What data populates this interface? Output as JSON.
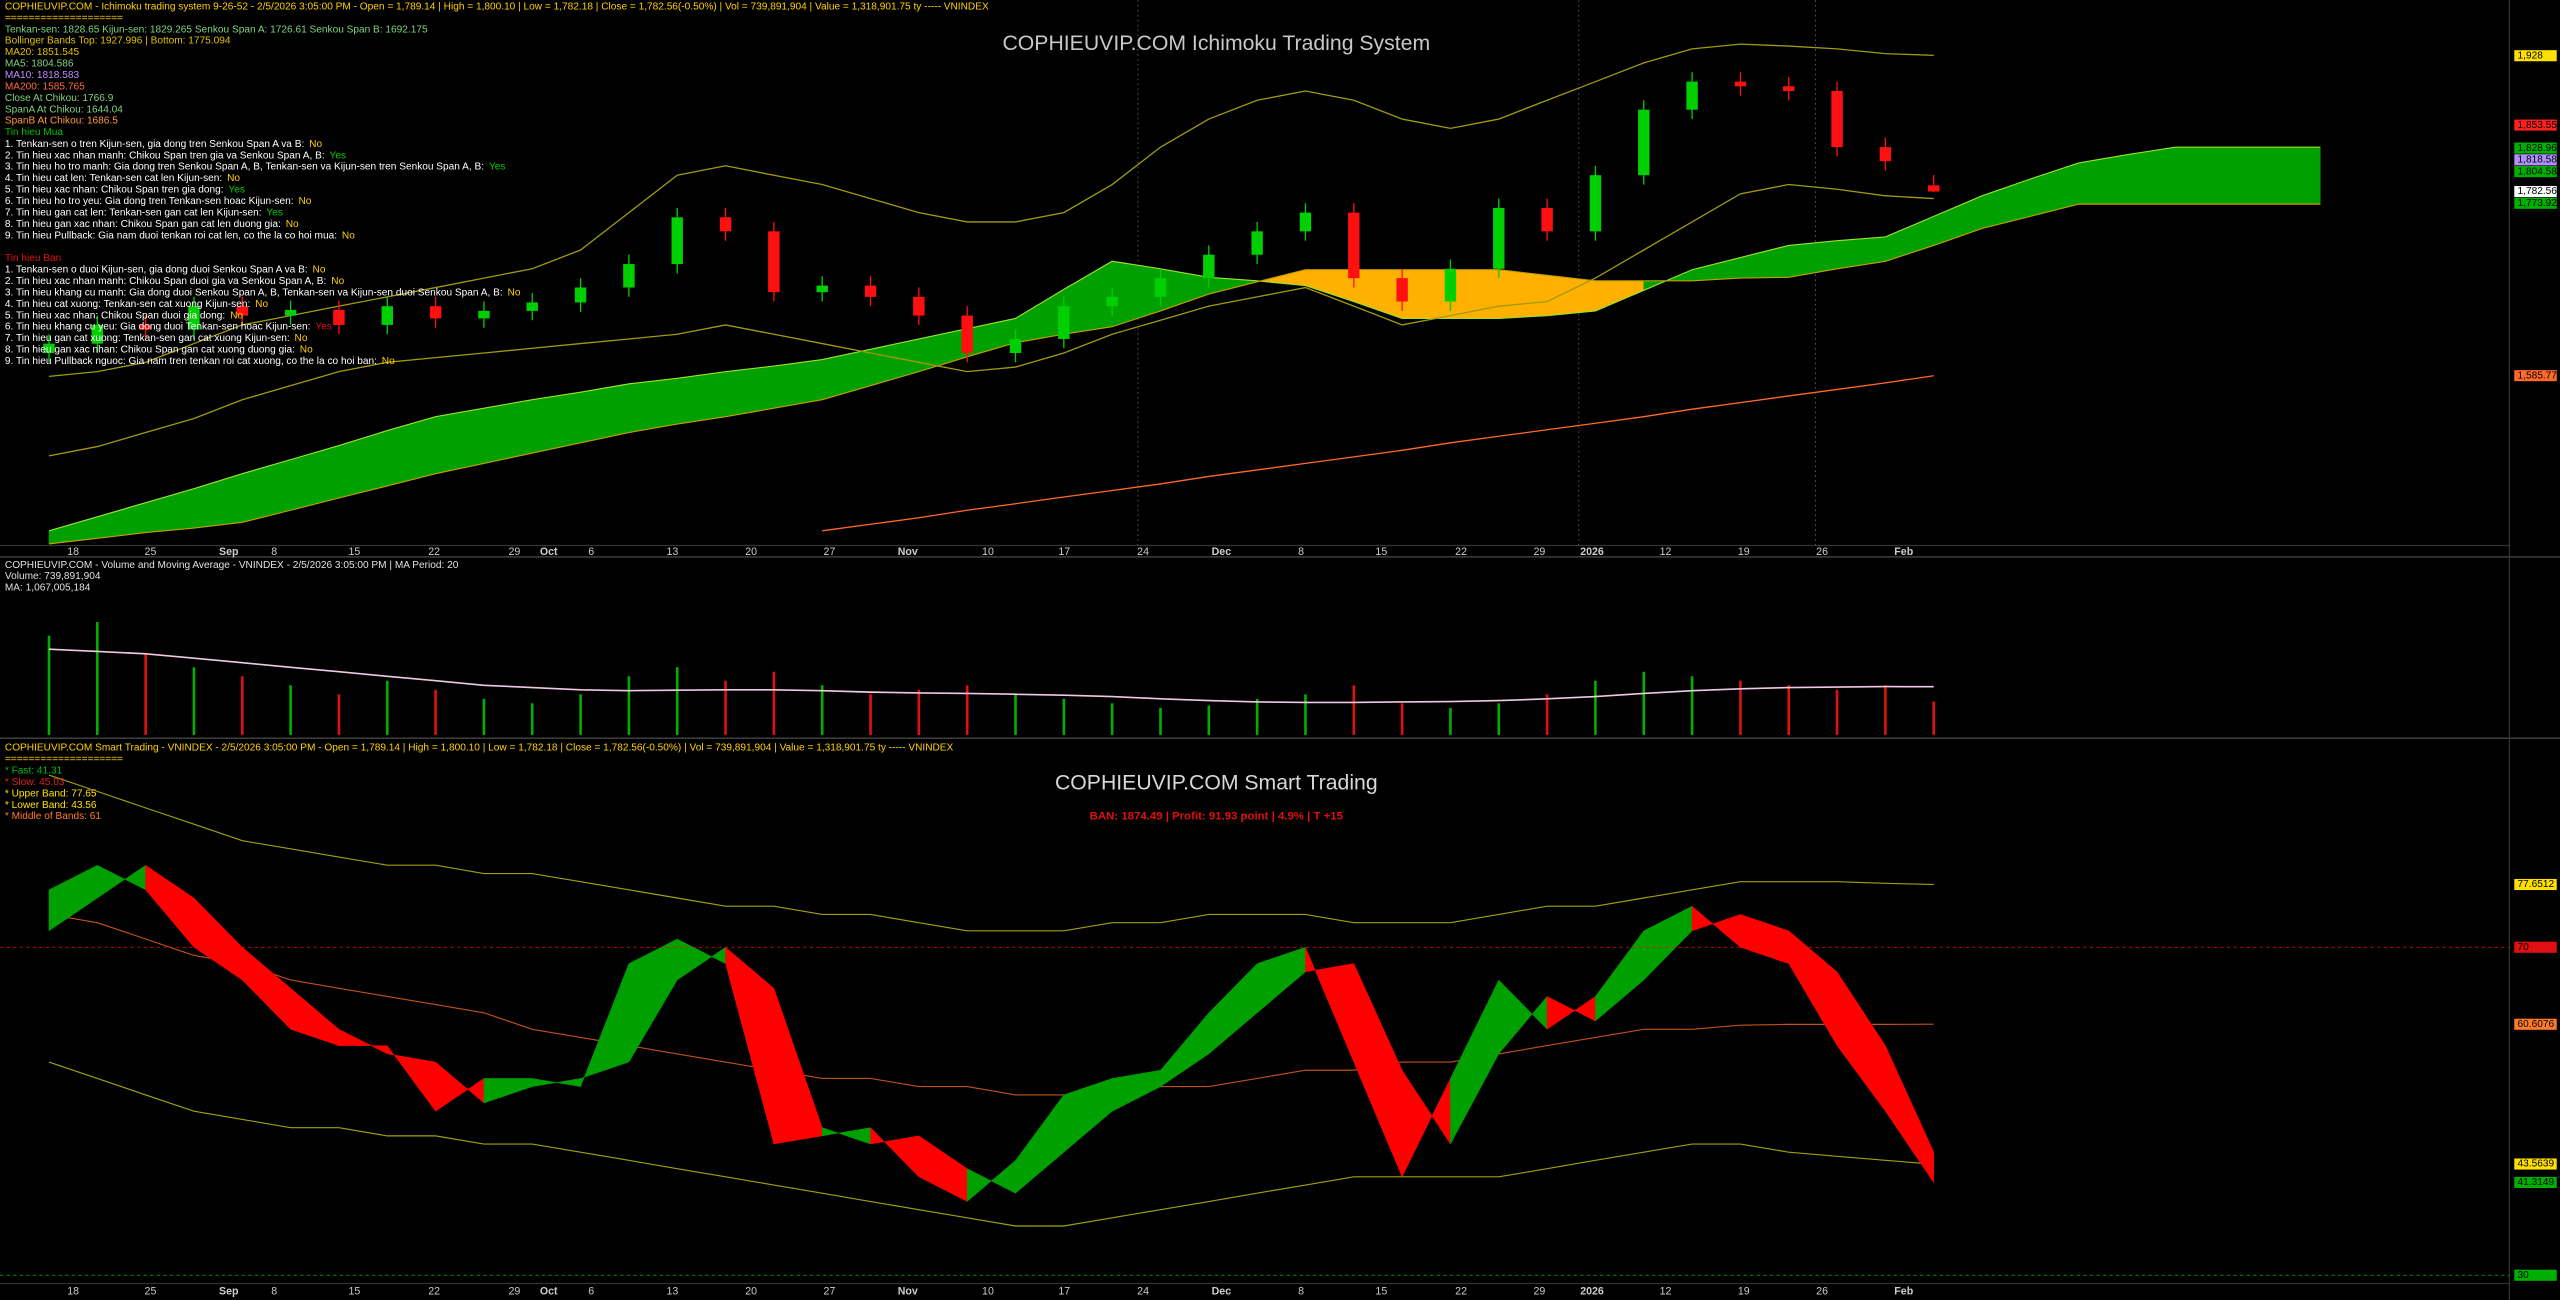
{
  "chart_data": [
    {
      "type": "candlestick",
      "header": "COPHIEUVIP.COM - Ichimoku trading system 9-26-52 - 2/5/2026 3:05:00 PM - Open = 1,789.14 | High = 1,800.10 | Low = 1,782.18 | Close = 1,782.56(-0.50%) | Vol = 739,891,904 | Value = 1,318,901.75 ty ----- VNINDEX",
      "separator": "====================",
      "title": "COPHIEUVIP.COM Ichimoku Trading System",
      "info": [
        {
          "text": "Tenkan-sen: 1828.65  Kijun-sen: 1829.265  Senkou Span A: 1726.61  Senkou Span B: 1692.175",
          "color": "#7fd37f"
        },
        {
          "text": "Bollinger Bands Top: 1927.996 | Bottom: 1775.094",
          "color": "#e0c000"
        },
        {
          "text": "MA20: 1851.545",
          "color": "#e0c000"
        },
        {
          "text": "MA5: 1804.586",
          "color": "#7fd37f"
        },
        {
          "text": "MA10: 1818.583",
          "color": "#c08cff"
        },
        {
          "text": "MA200: 1585.765",
          "color": "#ff6a3d"
        },
        {
          "text": "Close At Chikou: 1766.9",
          "color": "#7fd37f"
        },
        {
          "text": "SpanA At Chikou: 1644.04",
          "color": "#7fd37f"
        },
        {
          "text": "SpanB At Chikou: 1686.5",
          "color": "#ff9a3d"
        }
      ],
      "buy_title": "Tin hieu Mua",
      "buy": [
        {
          "text": "1. Tenkan-sen o tren Kijun-sen, gia dong tren Senkou Span A va B:",
          "answer": "No"
        },
        {
          "text": "2. Tin hieu xac nhan manh: Chikou Span tren gia va Senkou Span A, B:",
          "answer": "Yes"
        },
        {
          "text": "3. Tin hieu ho tro manh: Gia dong tren Senkou Span A, B, Tenkan-sen va Kijun-sen tren Senkou Span A, B:",
          "answer": "Yes"
        },
        {
          "text": "4. Tin hieu cat len: Tenkan-sen cat len Kijun-sen:",
          "answer": "No"
        },
        {
          "text": "5. Tin hieu xac nhan: Chikou Span tren gia dong:",
          "answer": "Yes"
        },
        {
          "text": "6. Tin hieu ho tro yeu: Gia dong tren Tenkan-sen hoac Kijun-sen:",
          "answer": "No"
        },
        {
          "text": "7. Tin hieu gan cat len: Tenkan-sen gan cat len Kijun-sen:",
          "answer": "Yes"
        },
        {
          "text": "8. Tin hieu gan xac nhan: Chikou Span gan cat len duong gia:",
          "answer": "No"
        },
        {
          "text": "9. Tin hieu Pullback: Gia nam duoi tenkan roi cat len, co the la co hoi mua:",
          "answer": "No"
        }
      ],
      "sell_title": "Tin hieu Ban",
      "sell": [
        {
          "text": "1. Tenkan-sen o duoi Kijun-sen, gia dong duoi Senkou Span A va B:",
          "answer": "No"
        },
        {
          "text": "2. Tin hieu xac nhan manh: Chikou Span duoi gia va Senkou Span A, B:",
          "answer": "No"
        },
        {
          "text": "3. Tin hieu khang cu manh: Gia dong duoi Senkou Span A, B, Tenkan-sen va Kijun-sen duoi Senkou Span A, B:",
          "answer": "No"
        },
        {
          "text": "4. Tin hieu cat xuong: Tenkan-sen cat xuong Kijun-sen:",
          "answer": "No"
        },
        {
          "text": "5. Tin hieu xac nhan: Chikou Span duoi gia dong:",
          "answer": "No"
        },
        {
          "text": "6. Tin hieu khang cu yeu: Gia dong duoi Tenkan-sen hoac Kijun-sen:",
          "answer": "Yes"
        },
        {
          "text": "7. Tin hieu gan cat xuong: Tenkan-sen gan cat xuong Kijun-sen:",
          "answer": "No"
        },
        {
          "text": "8. Tin hieu gan xac nhan: Chikou Span gan cat xuong duong gia:",
          "answer": "No"
        },
        {
          "text": "9. Tin hieu Pullback nguoc: Gia nam tren tenkan roi cat xuong, co the la co hoi ban:",
          "answer": "No"
        }
      ],
      "ylim": [
        1406,
        1987
      ],
      "xticks": [
        {
          "value": 0.5,
          "label": "18"
        },
        {
          "value": 2.1,
          "label": "25"
        },
        {
          "value": 3.72,
          "label": "Sep"
        },
        {
          "value": 4.66,
          "label": "8"
        },
        {
          "value": 6.32,
          "label": "15"
        },
        {
          "value": 7.97,
          "label": "22"
        },
        {
          "value": 9.63,
          "label": "29"
        },
        {
          "value": 10.34,
          "label": "Oct"
        },
        {
          "value": 11.22,
          "label": "6"
        },
        {
          "value": 12.9,
          "label": "13"
        },
        {
          "value": 14.53,
          "label": "20"
        },
        {
          "value": 16.15,
          "label": "27"
        },
        {
          "value": 17.77,
          "label": "Nov"
        },
        {
          "value": 19.43,
          "label": "10"
        },
        {
          "value": 21.01,
          "label": "17"
        },
        {
          "value": 22.64,
          "label": "24"
        },
        {
          "value": 24.26,
          "label": "Dec"
        },
        {
          "value": 25.91,
          "label": "8"
        },
        {
          "value": 27.57,
          "label": "15"
        },
        {
          "value": 29.22,
          "label": "22"
        },
        {
          "value": 30.84,
          "label": "29"
        },
        {
          "value": 31.93,
          "label": "2026"
        },
        {
          "value": 33.45,
          "label": "12"
        },
        {
          "value": 35.07,
          "label": "19"
        },
        {
          "value": 36.69,
          "label": "26"
        },
        {
          "value": 38.38,
          "label": "Feb"
        }
      ],
      "up_color": "#00d000",
      "down_color": "#ff1010",
      "open": [
        1610,
        1620,
        1640,
        1635,
        1660,
        1650,
        1656,
        1640,
        1660,
        1647,
        1655,
        1664,
        1680,
        1705,
        1755,
        1740,
        1675,
        1682,
        1670,
        1650,
        1610,
        1625,
        1660,
        1670,
        1690,
        1715,
        1740,
        1760,
        1690,
        1665,
        1700,
        1765,
        1740,
        1800,
        1870,
        1900,
        1895,
        1890,
        1830,
        1789.14
      ],
      "high": [
        1630,
        1650,
        1650,
        1670,
        1670,
        1666,
        1666,
        1670,
        1670,
        1665,
        1674,
        1690,
        1715,
        1765,
        1765,
        1750,
        1692,
        1692,
        1680,
        1660,
        1635,
        1670,
        1680,
        1700,
        1725,
        1750,
        1770,
        1770,
        1700,
        1710,
        1775,
        1775,
        1810,
        1880,
        1910,
        1910,
        1905,
        1900,
        1840,
        1800.1
      ],
      "low": [
        1600,
        1610,
        1625,
        1625,
        1640,
        1640,
        1630,
        1630,
        1637,
        1637,
        1645,
        1654,
        1670,
        1695,
        1730,
        1665,
        1665,
        1660,
        1640,
        1600,
        1600,
        1615,
        1650,
        1660,
        1680,
        1705,
        1730,
        1680,
        1655,
        1655,
        1690,
        1730,
        1730,
        1790,
        1860,
        1885,
        1880,
        1820,
        1805,
        1782.18
      ],
      "close": [
        1620,
        1640,
        1635,
        1660,
        1650,
        1656,
        1640,
        1660,
        1647,
        1655,
        1664,
        1680,
        1705,
        1755,
        1740,
        1675,
        1682,
        1670,
        1650,
        1610,
        1625,
        1660,
        1670,
        1690,
        1715,
        1740,
        1760,
        1690,
        1665,
        1700,
        1765,
        1740,
        1800,
        1870,
        1900,
        1895,
        1890,
        1830,
        1815,
        1782.56
      ],
      "span_a": [
        1420,
        1435,
        1450,
        1465,
        1481,
        1496,
        1511,
        1527,
        1542,
        1551,
        1560,
        1568,
        1577,
        1583,
        1590,
        1596,
        1603,
        1614,
        1625,
        1636,
        1647,
        1678,
        1708,
        1700,
        1691,
        1687,
        1682,
        1665,
        1647,
        1647,
        1647,
        1650,
        1655,
        1677,
        1699,
        1712,
        1725,
        1730,
        1734,
        1756,
        1778,
        1796,
        1813,
        1822,
        1830,
        1830,
        1830,
        1830
      ],
      "span_b": [
        1406,
        1412,
        1418,
        1423,
        1429,
        1442,
        1455,
        1468,
        1481,
        1492,
        1503,
        1514,
        1525,
        1534,
        1542,
        1551,
        1560,
        1575,
        1590,
        1606,
        1621,
        1630,
        1638,
        1655,
        1673,
        1686,
        1699,
        1699,
        1699,
        1699,
        1699,
        1693,
        1687,
        1687,
        1687,
        1690,
        1691,
        1700,
        1708,
        1725,
        1743,
        1756,
        1769,
        1769,
        1769,
        1769,
        1769,
        1769
      ],
      "cloud_up_color": "#00a000",
      "cloud_down_color": "#ffb000",
      "span_a_color": "#9fe02a",
      "span_b_color": "#c0a000",
      "lines": [
        {
          "color": "#a09a10",
          "values": [
            1585,
            1590,
            1600,
            1620,
            1640,
            1650,
            1660,
            1670,
            1680,
            1690,
            1700,
            1720,
            1760,
            1800,
            1810,
            1800,
            1790,
            1775,
            1760,
            1750,
            1750,
            1760,
            1790,
            1830,
            1860,
            1880,
            1890,
            1880,
            1860,
            1850,
            1860,
            1880,
            1900,
            1920,
            1935,
            1940,
            1938,
            1935,
            1930,
            1928
          ]
        },
        {
          "color": "#a09a10",
          "values": [
            1500,
            1510,
            1525,
            1540,
            1560,
            1575,
            1590,
            1600,
            1605,
            1610,
            1615,
            1620,
            1625,
            1630,
            1640,
            1630,
            1620,
            1610,
            1600,
            1590,
            1595,
            1610,
            1630,
            1645,
            1660,
            1670,
            1680,
            1660,
            1640,
            1650,
            1660,
            1665,
            1690,
            1720,
            1750,
            1780,
            1790,
            1785,
            1778,
            1775.09
          ]
        },
        {
          "color": "#ff6a2a",
          "values": [
            null,
            null,
            null,
            null,
            null,
            null,
            null,
            null,
            null,
            null,
            null,
            null,
            null,
            null,
            null,
            null,
            1420,
            1427,
            1434,
            1442,
            1449,
            1456,
            1463,
            1470,
            1478,
            1485,
            1492,
            1499,
            1506,
            1514,
            1521,
            1528,
            1535,
            1542,
            1550,
            1557,
            1564,
            1571,
            1578,
            1585.77
          ]
        }
      ],
      "price_labels": [
        {
          "value": 1928,
          "label": "1,928",
          "color": "#ffe000"
        },
        {
          "value": 1853.55,
          "label": "1,853.55",
          "color": "#ff2020"
        },
        {
          "value": 1828.96,
          "label": "1,828.96",
          "color": "#00b000"
        },
        {
          "value": 1818.58,
          "label": "1,818.58",
          "color": "#b090ff"
        },
        {
          "value": 1804.58,
          "label": "1,804.58",
          "color": "#00b000"
        },
        {
          "value": 1782.56,
          "label": "1,782.56",
          "color": "#ffffff"
        },
        {
          "value": 1773.92,
          "label": "1,773.92",
          "color": "#00b000"
        },
        {
          "value": 1585.77,
          "label": "1,585.77",
          "color": "#ff6a2a"
        }
      ]
    },
    {
      "type": "bar",
      "header": "COPHIEUVIP.COM - Volume and Moving Average - VNINDEX - 2/5/2026 3:05:00 PM | MA Period: 20",
      "volume_text": "Volume: 739,891,904",
      "ma_text": "MA: 1,067,005,184",
      "ylim": [
        0,
        3800000000
      ],
      "up_color": "#00b000",
      "down_color": "#e01010",
      "ma_color": "#f0c8e0",
      "values": [
        2200000000,
        2500000000,
        1800000000,
        1500000000,
        1300000000,
        1100000000,
        900000000,
        1200000000,
        1000000000,
        800000000,
        700000000,
        900000000,
        1300000000,
        1500000000,
        1200000000,
        1400000000,
        1100000000,
        900000000,
        1000000000,
        1100000000,
        900000000,
        800000000,
        700000000,
        600000000,
        650000000,
        800000000,
        900000000,
        1100000000,
        700000000,
        600000000,
        700000000,
        900000000,
        1200000000,
        1400000000,
        1300000000,
        1200000000,
        1100000000,
        1000000000,
        1100000000,
        739891904
      ],
      "ma_values": [
        1900000000,
        1850000000,
        1800000000,
        1700000000,
        1600000000,
        1500000000,
        1400000000,
        1300000000,
        1200000000,
        1100000000,
        1050000000,
        1000000000,
        980000000,
        990000000,
        1000000000,
        1000000000,
        980000000,
        950000000,
        930000000,
        920000000,
        900000000,
        880000000,
        850000000,
        800000000,
        760000000,
        730000000,
        720000000,
        720000000,
        730000000,
        740000000,
        760000000,
        800000000,
        850000000,
        920000000,
        980000000,
        1020000000,
        1050000000,
        1060000000,
        1070000000,
        1067005184
      ]
    },
    {
      "type": "band",
      "header": "COPHIEUVIP.COM Smart Trading - VNINDEX - 2/5/2026 3:05:00 PM - Open = 1,789.14 | High = 1,800.10 | Low = 1,782.18 | Close = 1,782.56(-0.50%) | Vol = 739,891,904 | Value = 1,318,901.75 ty ----- VNINDEX",
      "separator": "====================",
      "legend": [
        {
          "text": "* Fast:  41.31",
          "color": "#00c000"
        },
        {
          "text": "* Slow:  45.03",
          "color": "#e02020"
        },
        {
          "text": "* Upper Band:  77.65",
          "color": "#ffe000"
        },
        {
          "text": "* Lower Band:  43.56",
          "color": "#ffe000"
        },
        {
          "text": "* Middle of Bands:   61",
          "color": "#ff7a2a"
        }
      ],
      "title": "COPHIEUVIP.COM Smart Trading",
      "signal": "BAN: 1874.49 | Profit: 91.93 point | 4.9% | T +15",
      "ylim": [
        28.2,
        94.9
      ],
      "up_color": "#00a000",
      "down_color": "#ff0000",
      "band_color": "#a0a010",
      "middle_color": "#c0501a",
      "fast": [
        77,
        80,
        77,
        70,
        66,
        60,
        58,
        58,
        50,
        54,
        54,
        53,
        68,
        71,
        68,
        46,
        47,
        48,
        42,
        39,
        44,
        52,
        54,
        55,
        62,
        68,
        70,
        56,
        42,
        54,
        66,
        60,
        64,
        72,
        75,
        70,
        68,
        58,
        50,
        41.31
      ],
      "slow": [
        72,
        76,
        80,
        76,
        70,
        65,
        60,
        57,
        56,
        51,
        53,
        54,
        56,
        66,
        70,
        65,
        48,
        46,
        47,
        43,
        40,
        45,
        50,
        53,
        57,
        62,
        67,
        68,
        55,
        46,
        57,
        64,
        61,
        66,
        72,
        74,
        72,
        67,
        58,
        45.03
      ],
      "upper": [
        91,
        89,
        87,
        85,
        83,
        82,
        81,
        80,
        80,
        79,
        79,
        78,
        77,
        76,
        75,
        75,
        74,
        74,
        73,
        72,
        72,
        72,
        73,
        73,
        74,
        74,
        74,
        73,
        73,
        73,
        74,
        75,
        75,
        76,
        77,
        78,
        78,
        78,
        77.8,
        77.65
      ],
      "middle": [
        74,
        73,
        71,
        69,
        68,
        66,
        65,
        64,
        63,
        62,
        60,
        59,
        58,
        57,
        56,
        55,
        54,
        54,
        53,
        53,
        52,
        52,
        52,
        53,
        53,
        54,
        55,
        55,
        56,
        56,
        57,
        58,
        59,
        60,
        60,
        60.5,
        60.6,
        60.6,
        60.6,
        60.6076
      ],
      "lower": [
        56,
        54,
        52,
        50,
        49,
        48,
        48,
        47,
        47,
        46,
        46,
        45,
        44,
        43,
        42,
        41,
        40,
        39,
        38,
        37,
        36,
        36,
        37,
        38,
        39,
        40,
        41,
        42,
        42,
        42,
        42,
        43,
        44,
        45,
        46,
        46,
        45,
        44.5,
        44,
        43.56
      ],
      "value_labels": [
        {
          "value": 77.6512,
          "label": "77.6512",
          "color": "#ffe000",
          "line": false
        },
        {
          "value": 70,
          "label": "70",
          "color": "#e01010",
          "line": true
        },
        {
          "value": 60.6076,
          "label": "60.6076",
          "color": "#ff7a2a",
          "line": false
        },
        {
          "value": 43.5639,
          "label": "43.5639",
          "color": "#ffe000",
          "line": false
        },
        {
          "value": 41.3149,
          "label": "41.3149",
          "color": "#00b000",
          "line": false
        },
        {
          "value": 30,
          "label": "30",
          "color": "#00b000",
          "line": true
        }
      ]
    }
  ]
}
